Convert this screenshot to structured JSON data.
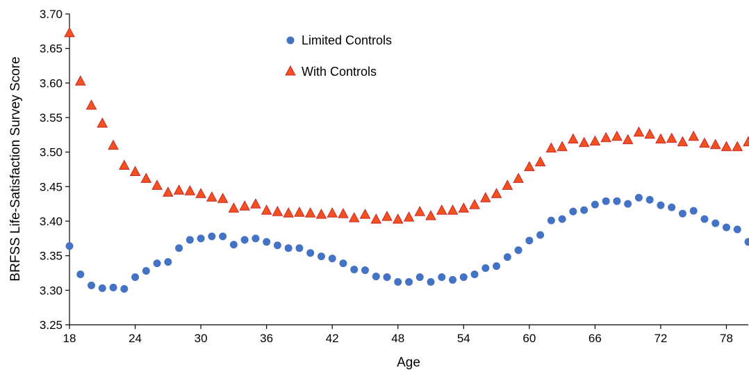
{
  "chart_data": {
    "type": "scatter",
    "title": "",
    "xlabel": "Age",
    "ylabel": "BRFSS Life-Satisfaction Survey Score",
    "xlim": [
      18,
      80
    ],
    "ylim": [
      3.25,
      3.7
    ],
    "xticks": [
      18,
      24,
      30,
      36,
      42,
      48,
      54,
      60,
      66,
      72,
      78
    ],
    "yticks": [
      "3.25",
      "3.30",
      "3.35",
      "3.40",
      "3.45",
      "3.50",
      "3.55",
      "3.60",
      "3.65",
      "3.70"
    ],
    "grid": false,
    "legend_position": "top-center",
    "x": [
      18,
      19,
      20,
      21,
      22,
      23,
      24,
      25,
      26,
      27,
      28,
      29,
      30,
      31,
      32,
      33,
      34,
      35,
      36,
      37,
      38,
      39,
      40,
      41,
      42,
      43,
      44,
      45,
      46,
      47,
      48,
      49,
      50,
      51,
      52,
      53,
      54,
      55,
      56,
      57,
      58,
      59,
      60,
      61,
      62,
      63,
      64,
      65,
      66,
      67,
      68,
      69,
      70,
      71,
      72,
      73,
      74,
      75,
      76,
      77,
      78,
      79,
      80
    ],
    "series": [
      {
        "name": "Limited Controls",
        "marker": "circle",
        "color": "#4472C4",
        "values": [
          3.364,
          3.323,
          3.307,
          3.303,
          3.304,
          3.302,
          3.319,
          3.328,
          3.339,
          3.341,
          3.361,
          3.373,
          3.375,
          3.378,
          3.378,
          3.366,
          3.373,
          3.375,
          3.37,
          3.365,
          3.361,
          3.361,
          3.354,
          3.349,
          3.346,
          3.339,
          3.33,
          3.329,
          3.32,
          3.319,
          3.312,
          3.312,
          3.319,
          3.312,
          3.319,
          3.315,
          3.319,
          3.323,
          3.332,
          3.335,
          3.348,
          3.358,
          3.372,
          3.38,
          3.401,
          3.403,
          3.414,
          3.416,
          3.424,
          3.429,
          3.429,
          3.425,
          3.434,
          3.431,
          3.423,
          3.42,
          3.411,
          3.415,
          3.403,
          3.397,
          3.391,
          3.388,
          3.37
        ]
      },
      {
        "name": "With Controls",
        "marker": "triangle",
        "color": "#F4511E",
        "values": [
          3.672,
          3.602,
          3.567,
          3.541,
          3.509,
          3.48,
          3.471,
          3.461,
          3.451,
          3.441,
          3.444,
          3.443,
          3.439,
          3.434,
          3.432,
          3.418,
          3.421,
          3.424,
          3.415,
          3.413,
          3.411,
          3.412,
          3.411,
          3.409,
          3.411,
          3.41,
          3.404,
          3.409,
          3.402,
          3.406,
          3.402,
          3.405,
          3.413,
          3.407,
          3.415,
          3.415,
          3.418,
          3.423,
          3.433,
          3.439,
          3.451,
          3.461,
          3.478,
          3.485,
          3.505,
          3.507,
          3.518,
          3.513,
          3.515,
          3.52,
          3.522,
          3.517,
          3.528,
          3.525,
          3.518,
          3.519,
          3.514,
          3.522,
          3.512,
          3.51,
          3.507,
          3.507,
          3.514
        ]
      }
    ]
  }
}
